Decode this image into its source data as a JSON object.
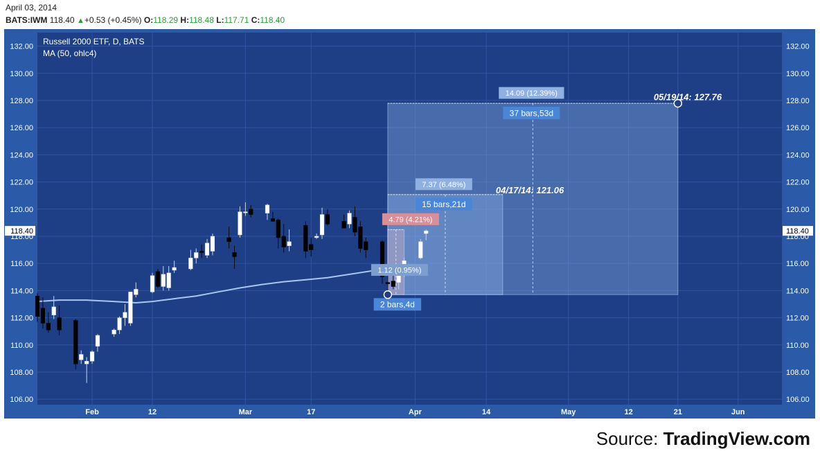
{
  "header": {
    "date": "April 03, 2014",
    "symbol": "BATS:IWM",
    "last": "118.40",
    "change": "+0.53 (+0.45%)",
    "open_label": "O:",
    "open": "118.29",
    "high_label": "H:",
    "high": "118.48",
    "low_label": "L:",
    "low": "117.71",
    "close_label": "C:",
    "close": "118.40"
  },
  "source": {
    "prefix": "Source: ",
    "brand": "TradingView.com"
  },
  "colors": {
    "background": "#1e3f86",
    "frame": "#2a5aa8",
    "grid": "#2f55a3",
    "ma_line": "#a9c6ee",
    "bull_candle": "#ffffff",
    "bear_candle": "#000000",
    "projection_box": "#8cb3e8",
    "label_blue": "#4a86d8",
    "label_red": "#d98f9a"
  },
  "chart_data": {
    "type": "candlestick",
    "title": "Russell 2000 ETF, D, BATS",
    "indicator": "MA (50, ohlc4)",
    "price_axis": {
      "ticks": [
        "132.00",
        "130.00",
        "128.00",
        "126.00",
        "124.00",
        "122.00",
        "120.00",
        "118.00",
        "116.00",
        "114.00",
        "112.00",
        "110.00",
        "108.00",
        "106.00"
      ],
      "ylim": [
        105.6,
        133.0
      ],
      "last_price_label": "118.40"
    },
    "time_axis": {
      "labels": [
        "Feb",
        "12",
        "Mar",
        "17",
        "Apr",
        "14",
        "May",
        "12",
        "21",
        "Jun"
      ],
      "label_days": [
        27,
        38,
        55,
        67,
        86,
        99,
        114,
        125,
        134,
        145
      ],
      "xlim": [
        17,
        153
      ]
    },
    "candles": [
      {
        "d": 17,
        "o": 113.6,
        "h": 113.8,
        "l": 111.7,
        "c": 112.1
      },
      {
        "d": 18,
        "o": 112.7,
        "h": 113.5,
        "l": 111.2,
        "c": 111.6
      },
      {
        "d": 19,
        "o": 111.6,
        "h": 112.4,
        "l": 110.9,
        "c": 111.1
      },
      {
        "d": 20,
        "o": 112.2,
        "h": 113.6,
        "l": 111.9,
        "c": 112.8
      },
      {
        "d": 21,
        "o": 112.0,
        "h": 112.9,
        "l": 110.7,
        "c": 111.1
      },
      {
        "d": 24,
        "o": 111.8,
        "h": 111.9,
        "l": 108.2,
        "c": 108.6
      },
      {
        "d": 25,
        "o": 108.9,
        "h": 109.6,
        "l": 108.6,
        "c": 109.3
      },
      {
        "d": 26,
        "o": 108.6,
        "h": 109.1,
        "l": 107.2,
        "c": 108.8
      },
      {
        "d": 27,
        "o": 108.8,
        "h": 109.6,
        "l": 108.6,
        "c": 109.5
      },
      {
        "d": 28,
        "o": 109.9,
        "h": 110.8,
        "l": 109.5,
        "c": 110.7
      },
      {
        "d": 31,
        "o": 110.8,
        "h": 111.2,
        "l": 110.6,
        "c": 111.1
      },
      {
        "d": 32,
        "o": 111.1,
        "h": 112.1,
        "l": 110.8,
        "c": 112.0
      },
      {
        "d": 33,
        "o": 112.0,
        "h": 113.0,
        "l": 111.4,
        "c": 112.4
      },
      {
        "d": 34,
        "o": 111.6,
        "h": 113.9,
        "l": 111.4,
        "c": 113.9
      },
      {
        "d": 35,
        "o": 113.7,
        "h": 114.6,
        "l": 113.5,
        "c": 114.1
      },
      {
        "d": 38,
        "o": 113.9,
        "h": 115.3,
        "l": 113.8,
        "c": 115.1
      },
      {
        "d": 39,
        "o": 115.4,
        "h": 115.6,
        "l": 114.2,
        "c": 114.3
      },
      {
        "d": 40,
        "o": 114.3,
        "h": 115.8,
        "l": 114.0,
        "c": 115.2
      },
      {
        "d": 41,
        "o": 114.2,
        "h": 115.8,
        "l": 114.0,
        "c": 115.3
      },
      {
        "d": 42,
        "o": 115.5,
        "h": 116.2,
        "l": 115.3,
        "c": 115.7
      },
      {
        "d": 45,
        "o": 115.6,
        "h": 117.0,
        "l": 115.5,
        "c": 116.4
      },
      {
        "d": 46,
        "o": 116.4,
        "h": 117.1,
        "l": 116.0,
        "c": 116.8
      },
      {
        "d": 47,
        "o": 116.9,
        "h": 117.4,
        "l": 116.4,
        "c": 116.8
      },
      {
        "d": 48,
        "o": 116.6,
        "h": 117.8,
        "l": 116.4,
        "c": 117.5
      },
      {
        "d": 49,
        "o": 116.9,
        "h": 118.2,
        "l": 116.6,
        "c": 118.0
      },
      {
        "d": 52,
        "o": 117.9,
        "h": 118.7,
        "l": 117.1,
        "c": 117.6
      },
      {
        "d": 53,
        "o": 116.8,
        "h": 117.3,
        "l": 115.6,
        "c": 116.5
      },
      {
        "d": 54,
        "o": 118.1,
        "h": 120.2,
        "l": 117.9,
        "c": 119.8
      },
      {
        "d": 55,
        "o": 119.8,
        "h": 120.5,
        "l": 119.5,
        "c": 119.8
      },
      {
        "d": 56,
        "o": 120.0,
        "h": 120.3,
        "l": 119.4,
        "c": 119.6
      },
      {
        "d": 59,
        "o": 119.7,
        "h": 120.4,
        "l": 119.2,
        "c": 120.3
      },
      {
        "d": 60,
        "o": 119.3,
        "h": 119.8,
        "l": 119.1,
        "c": 119.1
      },
      {
        "d": 61,
        "o": 119.2,
        "h": 119.3,
        "l": 117.1,
        "c": 117.9
      },
      {
        "d": 62,
        "o": 118.0,
        "h": 118.9,
        "l": 116.8,
        "c": 117.2
      },
      {
        "d": 63,
        "o": 117.3,
        "h": 118.5,
        "l": 116.9,
        "c": 117.6
      },
      {
        "d": 66,
        "o": 118.8,
        "h": 119.1,
        "l": 116.4,
        "c": 116.9
      },
      {
        "d": 67,
        "o": 117.4,
        "h": 117.9,
        "l": 116.5,
        "c": 117.0
      },
      {
        "d": 68,
        "o": 117.9,
        "h": 118.2,
        "l": 117.8,
        "c": 118.0
      },
      {
        "d": 69,
        "o": 118.1,
        "h": 120.1,
        "l": 117.8,
        "c": 119.6
      },
      {
        "d": 70,
        "o": 119.6,
        "h": 120.0,
        "l": 118.8,
        "c": 118.9
      },
      {
        "d": 73,
        "o": 119.1,
        "h": 119.6,
        "l": 118.6,
        "c": 118.6
      },
      {
        "d": 74,
        "o": 118.9,
        "h": 119.9,
        "l": 118.6,
        "c": 119.7
      },
      {
        "d": 75,
        "o": 119.4,
        "h": 120.2,
        "l": 118.0,
        "c": 118.3
      },
      {
        "d": 76,
        "o": 118.7,
        "h": 119.1,
        "l": 116.8,
        "c": 117.1
      },
      {
        "d": 77,
        "o": 117.6,
        "h": 117.9,
        "l": 116.4,
        "c": 117.0
      },
      {
        "d": 80,
        "o": 117.6,
        "h": 117.7,
        "l": 114.5,
        "c": 115.0
      },
      {
        "d": 81,
        "o": 114.6,
        "h": 115.1,
        "l": 114.0,
        "c": 114.5
      },
      {
        "d": 82,
        "o": 114.7,
        "h": 115.2,
        "l": 114.1,
        "c": 114.3
      },
      {
        "d": 83,
        "o": 114.6,
        "h": 115.8,
        "l": 114.1,
        "c": 115.2
      },
      {
        "d": 84,
        "o": 115.3,
        "h": 116.4,
        "l": 115.0,
        "c": 116.2
      },
      {
        "d": 87,
        "o": 116.4,
        "h": 117.8,
        "l": 116.3,
        "c": 117.6
      },
      {
        "d": 88,
        "o": 118.2,
        "h": 118.5,
        "l": 117.7,
        "c": 118.4
      }
    ],
    "moving_average": {
      "name": "MA (50, ohlc4)",
      "points": [
        [
          17,
          113.2
        ],
        [
          21,
          113.3
        ],
        [
          26,
          113.3
        ],
        [
          31,
          113.2
        ],
        [
          35,
          113.1
        ],
        [
          38,
          113.2
        ],
        [
          42,
          113.4
        ],
        [
          46,
          113.6
        ],
        [
          50,
          113.9
        ],
        [
          54,
          114.2
        ],
        [
          58,
          114.45
        ],
        [
          62,
          114.65
        ],
        [
          66,
          114.8
        ],
        [
          70,
          114.95
        ],
        [
          74,
          115.2
        ],
        [
          78,
          115.45
        ],
        [
          81,
          115.5
        ]
      ]
    },
    "projections": [
      {
        "start_day": 81,
        "end_day": 84,
        "start_price": 113.7,
        "end_price": 118.49,
        "change": "4.79 (4.21%)",
        "prior_change": "1.12 (0.95%)",
        "duration": "2 bars,4d",
        "color": "red"
      },
      {
        "start_day": 81,
        "end_day": 102,
        "start_price": 113.7,
        "end_price": 121.07,
        "change": "7.37 (6.48%)",
        "duration": "15 bars,21d",
        "color": "blue"
      },
      {
        "start_day": 81,
        "end_day": 134,
        "start_price": 113.7,
        "end_price": 127.79,
        "change": "14.09 (12.39%)",
        "duration": "37 bars,53d",
        "color": "blue"
      }
    ],
    "annotations": [
      {
        "text": "04/17/14: 121.06",
        "day": 102,
        "price": 121.06
      },
      {
        "text": "05/19/14: 127.76",
        "day": 134,
        "price": 127.76
      }
    ]
  }
}
